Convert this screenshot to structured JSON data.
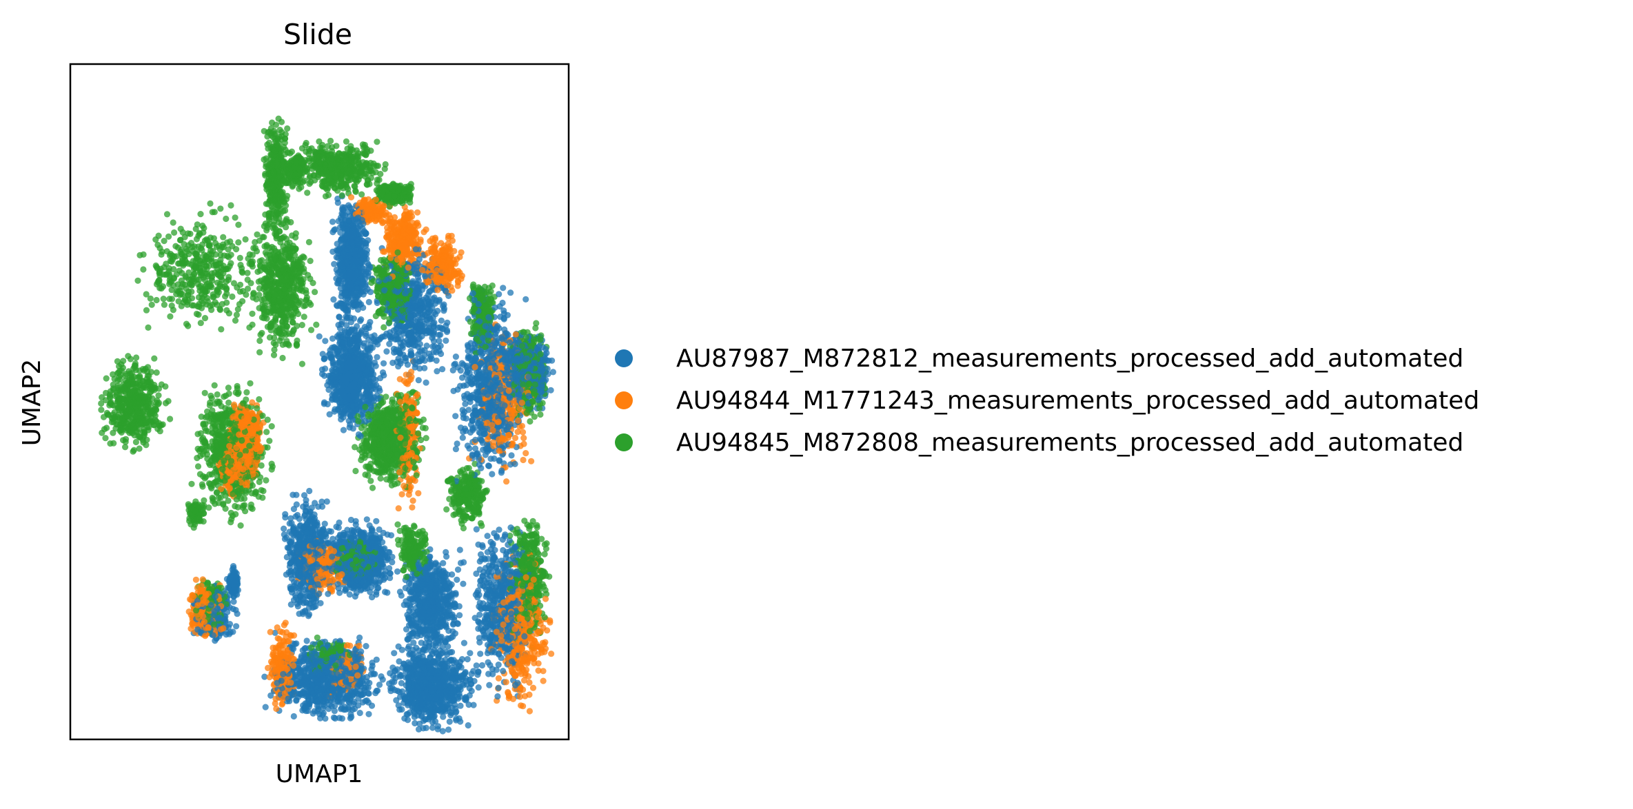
{
  "chart_data": {
    "type": "scatter",
    "title": "Slide",
    "xlabel": "UMAP1",
    "ylabel": "UMAP2",
    "xlim": [
      0,
      10
    ],
    "ylim": [
      0,
      10
    ],
    "grid": false,
    "ticks": false,
    "legend_placement": "right",
    "series": [
      {
        "name": "AU87987_M872812_measurements_processed_add_automated",
        "color": "#1f77b4",
        "regions": [
          {
            "x": [
              5.2,
              6.1
            ],
            "y": [
              6.0,
              8.2
            ],
            "weight": 50
          },
          {
            "x": [
              4.9,
              6.4
            ],
            "y": [
              4.4,
              6.4
            ],
            "weight": 60
          },
          {
            "x": [
              6.0,
              7.8
            ],
            "y": [
              5.0,
              7.6
            ],
            "weight": 45
          },
          {
            "x": [
              7.6,
              9.3
            ],
            "y": [
              3.5,
              7.0
            ],
            "weight": 55
          },
          {
            "x": [
              8.6,
              9.8
            ],
            "y": [
              4.8,
              6.2
            ],
            "weight": 40
          },
          {
            "x": [
              5.0,
              6.6
            ],
            "y": [
              2.0,
              3.3
            ],
            "weight": 65
          },
          {
            "x": [
              4.2,
              5.3
            ],
            "y": [
              1.6,
              3.8
            ],
            "weight": 45
          },
          {
            "x": [
              6.5,
              8.0
            ],
            "y": [
              1.0,
              3.0
            ],
            "weight": 50
          },
          {
            "x": [
              3.8,
              6.5
            ],
            "y": [
              0.1,
              1.6
            ],
            "weight": 65
          },
          {
            "x": [
              6.3,
              8.3
            ],
            "y": [
              0.0,
              1.5
            ],
            "weight": 65
          },
          {
            "x": [
              8.0,
              9.4
            ],
            "y": [
              0.5,
              3.3
            ],
            "weight": 45
          },
          {
            "x": [
              5.4,
              5.8
            ],
            "y": [
              4.8,
              5.8
            ],
            "weight": 30
          },
          {
            "x": [
              3.1,
              3.4
            ],
            "y": [
              2.0,
              2.6
            ],
            "weight": 8
          },
          {
            "x": [
              2.3,
              3.4
            ],
            "y": [
              1.3,
              2.3
            ],
            "weight": 18
          }
        ]
      },
      {
        "name": "AU94844_M1771243_measurements_processed_add_automated",
        "color": "#ff7f0e",
        "regions": [
          {
            "x": [
              3.1,
              3.9
            ],
            "y": [
              3.7,
              5.1
            ],
            "weight": 55
          },
          {
            "x": [
              2.9,
              3.6
            ],
            "y": [
              3.5,
              4.6
            ],
            "weight": 30
          },
          {
            "x": [
              2.3,
              3.1
            ],
            "y": [
              1.4,
              2.4
            ],
            "weight": 22
          },
          {
            "x": [
              6.2,
              7.2
            ],
            "y": [
              6.8,
              8.0
            ],
            "weight": 25
          },
          {
            "x": [
              7.0,
              8.0
            ],
            "y": [
              6.5,
              7.6
            ],
            "weight": 18
          },
          {
            "x": [
              4.5,
              5.6
            ],
            "y": [
              2.0,
              3.0
            ],
            "weight": 16
          },
          {
            "x": [
              6.5,
              7.1
            ],
            "y": [
              3.2,
              5.8
            ],
            "weight": 16
          },
          {
            "x": [
              8.0,
              9.5
            ],
            "y": [
              3.6,
              6.5
            ],
            "weight": 22
          },
          {
            "x": [
              8.4,
              9.8
            ],
            "y": [
              0.2,
              3.0
            ],
            "weight": 32
          },
          {
            "x": [
              3.9,
              4.6
            ],
            "y": [
              0.3,
              1.8
            ],
            "weight": 14
          },
          {
            "x": [
              5.0,
              6.0
            ],
            "y": [
              0.5,
              1.5
            ],
            "weight": 8
          },
          {
            "x": [
              5.6,
              6.5
            ],
            "y": [
              7.6,
              8.1
            ],
            "weight": 10
          }
        ]
      },
      {
        "name": "AU94845_M872808_measurements_processed_add_automated",
        "color": "#2ca02c",
        "regions": [
          {
            "x": [
              0.4,
              2.0
            ],
            "y": [
              4.1,
              5.8
            ],
            "weight": 40
          },
          {
            "x": [
              1.1,
              4.0
            ],
            "y": [
              5.9,
              8.0
            ],
            "weight": 32
          },
          {
            "x": [
              3.8,
              4.4
            ],
            "y": [
              7.2,
              9.5
            ],
            "weight": 28
          },
          {
            "x": [
              4.3,
              6.5
            ],
            "y": [
              8.0,
              9.0
            ],
            "weight": 35
          },
          {
            "x": [
              6.0,
              7.0
            ],
            "y": [
              7.9,
              8.3
            ],
            "weight": 20
          },
          {
            "x": [
              2.3,
              4.2
            ],
            "y": [
              3.1,
              5.4
            ],
            "weight": 60
          },
          {
            "x": [
              3.5,
              5.0
            ],
            "y": [
              5.5,
              8.0
            ],
            "weight": 45
          },
          {
            "x": [
              5.6,
              7.3
            ],
            "y": [
              3.6,
              5.3
            ],
            "weight": 55
          },
          {
            "x": [
              6.0,
              7.0
            ],
            "y": [
              6.0,
              7.4
            ],
            "weight": 30
          },
          {
            "x": [
              8.0,
              8.6
            ],
            "y": [
              5.6,
              7.0
            ],
            "weight": 18
          },
          {
            "x": [
              8.8,
              9.7
            ],
            "y": [
              4.6,
              6.3
            ],
            "weight": 28
          },
          {
            "x": [
              7.5,
              8.5
            ],
            "y": [
              3.0,
              4.2
            ],
            "weight": 22
          },
          {
            "x": [
              8.8,
              9.7
            ],
            "y": [
              1.2,
              3.5
            ],
            "weight": 30
          },
          {
            "x": [
              5.2,
              6.3
            ],
            "y": [
              2.3,
              3.0
            ],
            "weight": 20
          },
          {
            "x": [
              2.4,
              3.2
            ],
            "y": [
              1.5,
              2.4
            ],
            "weight": 20
          },
          {
            "x": [
              6.5,
              7.3
            ],
            "y": [
              2.3,
              3.3
            ],
            "weight": 14
          },
          {
            "x": [
              2.3,
              2.7
            ],
            "y": [
              3.1,
              3.6
            ],
            "weight": 8
          },
          {
            "x": [
              4.6,
              5.8
            ],
            "y": [
              0.9,
              1.5
            ],
            "weight": 8
          },
          {
            "x": [
              4.2,
              4.8
            ],
            "y": [
              8.1,
              8.8
            ],
            "weight": 14
          }
        ]
      }
    ]
  }
}
